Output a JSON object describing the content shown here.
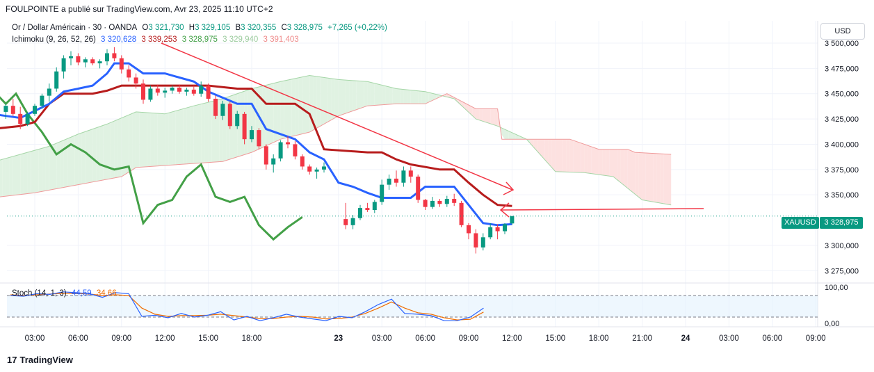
{
  "header": {
    "published": "FOULPOINTE a publié sur TradingView.com, Avr 23, 2025 11:10 UTC+2"
  },
  "legend_main": {
    "symbol": "Or / Dollar Américain · 30 · OANDA",
    "o_label": "O",
    "o_val": "3 321,730",
    "h_label": "H",
    "h_val": "3 329,105",
    "b_label": "B",
    "b_val": "3 320,355",
    "c_label": "C",
    "c_val": "3 328,975",
    "change": "+7,265 (+0,22%)"
  },
  "legend_ichimoku": {
    "name": "Ichimoku (9, 26, 52, 26)",
    "v1": "3 320,628",
    "v2": "3 339,253",
    "v3": "3 328,975",
    "v4": "3 329,940",
    "v5": "3 391,403"
  },
  "legend_stoch": {
    "name": "Stoch (14, 1, 3)",
    "k": "44,59",
    "d": "34,66"
  },
  "currency_button": "USD",
  "symbol_badge": "XAUUSD",
  "price_badge": "3 328,975",
  "brand": "TradingView",
  "colors": {
    "up": "#089981",
    "down": "#f23645",
    "tenkan": "#2962ff",
    "kijun": "#b71c1c",
    "chikou": "#43a047",
    "cloud_bull": "#e0f2e2",
    "cloud_bear": "#fde1e0",
    "stoch_k": "#2962ff",
    "stoch_d": "#ef6c00",
    "annotation": "#f23645"
  },
  "chart_data": {
    "type": "candlestick",
    "title": "Or / Dollar Américain · 30 · OANDA",
    "y_ticks": [
      3500,
      3475,
      3450,
      3425,
      3400,
      3375,
      3350,
      3300,
      3275
    ],
    "y_tick_labels": [
      "3 500,000",
      "3 475,000",
      "3 450,000",
      "3 425,000",
      "3 400,000",
      "3 375,000",
      "3 350,000",
      "3 300,000",
      "3 275,000"
    ],
    "ylim": [
      3268,
      3508
    ],
    "x_ticks": [
      "03:00",
      "06:00",
      "09:00",
      "12:00",
      "15:00",
      "18:00",
      "23",
      "03:00",
      "06:00",
      "09:00",
      "12:00",
      "15:00",
      "18:00",
      "21:00",
      "24",
      "03:00",
      "06:00",
      "09:00"
    ],
    "x_tick_hours": [
      3,
      6,
      9,
      12,
      15,
      18,
      24,
      27,
      30,
      33,
      36,
      39,
      42,
      45,
      48,
      51,
      54,
      57
    ],
    "last_price": 3328.975,
    "candles": [
      {
        "t": 1.0,
        "o": 3432,
        "h": 3440,
        "l": 3425,
        "c": 3438
      },
      {
        "t": 1.5,
        "o": 3438,
        "h": 3445,
        "l": 3428,
        "c": 3430
      },
      {
        "t": 2.0,
        "o": 3430,
        "h": 3437,
        "l": 3415,
        "c": 3420
      },
      {
        "t": 2.5,
        "o": 3420,
        "h": 3432,
        "l": 3418,
        "c": 3430
      },
      {
        "t": 3.0,
        "o": 3430,
        "h": 3440,
        "l": 3428,
        "c": 3438
      },
      {
        "t": 3.5,
        "o": 3438,
        "h": 3450,
        "l": 3435,
        "c": 3448
      },
      {
        "t": 4.0,
        "o": 3448,
        "h": 3460,
        "l": 3442,
        "c": 3455
      },
      {
        "t": 4.5,
        "o": 3455,
        "h": 3476,
        "l": 3452,
        "c": 3472
      },
      {
        "t": 5.0,
        "o": 3472,
        "h": 3488,
        "l": 3465,
        "c": 3485
      },
      {
        "t": 5.5,
        "o": 3485,
        "h": 3492,
        "l": 3478,
        "c": 3487
      },
      {
        "t": 6.0,
        "o": 3487,
        "h": 3490,
        "l": 3478,
        "c": 3481
      },
      {
        "t": 6.5,
        "o": 3481,
        "h": 3486,
        "l": 3476,
        "c": 3484
      },
      {
        "t": 7.0,
        "o": 3484,
        "h": 3486,
        "l": 3478,
        "c": 3480
      },
      {
        "t": 7.5,
        "o": 3480,
        "h": 3484,
        "l": 3475,
        "c": 3482
      },
      {
        "t": 8.0,
        "o": 3482,
        "h": 3494,
        "l": 3478,
        "c": 3490
      },
      {
        "t": 8.5,
        "o": 3490,
        "h": 3496,
        "l": 3482,
        "c": 3485
      },
      {
        "t": 9.0,
        "o": 3485,
        "h": 3488,
        "l": 3470,
        "c": 3474
      },
      {
        "t": 9.5,
        "o": 3474,
        "h": 3478,
        "l": 3462,
        "c": 3466
      },
      {
        "t": 10.0,
        "o": 3466,
        "h": 3470,
        "l": 3455,
        "c": 3460
      },
      {
        "t": 10.5,
        "o": 3460,
        "h": 3464,
        "l": 3440,
        "c": 3444
      },
      {
        "t": 11.0,
        "o": 3444,
        "h": 3458,
        "l": 3442,
        "c": 3455
      },
      {
        "t": 11.5,
        "o": 3455,
        "h": 3459,
        "l": 3448,
        "c": 3451
      },
      {
        "t": 12.0,
        "o": 3451,
        "h": 3456,
        "l": 3446,
        "c": 3453
      },
      {
        "t": 12.5,
        "o": 3453,
        "h": 3458,
        "l": 3450,
        "c": 3456
      },
      {
        "t": 13.0,
        "o": 3456,
        "h": 3459,
        "l": 3450,
        "c": 3452
      },
      {
        "t": 13.5,
        "o": 3452,
        "h": 3456,
        "l": 3448,
        "c": 3454
      },
      {
        "t": 14.0,
        "o": 3454,
        "h": 3458,
        "l": 3448,
        "c": 3450
      },
      {
        "t": 14.5,
        "o": 3450,
        "h": 3462,
        "l": 3447,
        "c": 3458
      },
      {
        "t": 15.0,
        "o": 3458,
        "h": 3460,
        "l": 3442,
        "c": 3445
      },
      {
        "t": 15.5,
        "o": 3445,
        "h": 3448,
        "l": 3425,
        "c": 3428
      },
      {
        "t": 16.0,
        "o": 3428,
        "h": 3443,
        "l": 3424,
        "c": 3440
      },
      {
        "t": 16.5,
        "o": 3440,
        "h": 3442,
        "l": 3415,
        "c": 3418
      },
      {
        "t": 17.0,
        "o": 3418,
        "h": 3433,
        "l": 3415,
        "c": 3430
      },
      {
        "t": 17.5,
        "o": 3430,
        "h": 3432,
        "l": 3400,
        "c": 3405
      },
      {
        "t": 18.0,
        "o": 3405,
        "h": 3418,
        "l": 3402,
        "c": 3414
      },
      {
        "t": 18.5,
        "o": 3414,
        "h": 3416,
        "l": 3395,
        "c": 3398
      },
      {
        "t": 19.0,
        "o": 3398,
        "h": 3400,
        "l": 3375,
        "c": 3380
      },
      {
        "t": 19.5,
        "o": 3380,
        "h": 3390,
        "l": 3372,
        "c": 3386
      },
      {
        "t": 20.0,
        "o": 3386,
        "h": 3404,
        "l": 3383,
        "c": 3402
      },
      {
        "t": 20.5,
        "o": 3402,
        "h": 3408,
        "l": 3396,
        "c": 3400
      },
      {
        "t": 21.0,
        "o": 3400,
        "h": 3403,
        "l": 3385,
        "c": 3388
      },
      {
        "t": 21.5,
        "o": 3388,
        "h": 3390,
        "l": 3375,
        "c": 3378
      },
      {
        "t": 22.0,
        "o": 3378,
        "h": 3380,
        "l": 3370,
        "c": 3373
      },
      {
        "t": 22.5,
        "o": 3373,
        "h": 3377,
        "l": 3366,
        "c": 3375
      },
      {
        "t": 23.0,
        "o": 3375,
        "h": 3382,
        "l": 3372,
        "c": 3378
      },
      {
        "t": 24.5,
        "o": 3326,
        "h": 3342,
        "l": 3316,
        "c": 3320
      },
      {
        "t": 25.0,
        "o": 3320,
        "h": 3330,
        "l": 3316,
        "c": 3327
      },
      {
        "t": 25.5,
        "o": 3327,
        "h": 3340,
        "l": 3325,
        "c": 3337
      },
      {
        "t": 26.0,
        "o": 3337,
        "h": 3342,
        "l": 3333,
        "c": 3335
      },
      {
        "t": 26.5,
        "o": 3335,
        "h": 3345,
        "l": 3332,
        "c": 3343
      },
      {
        "t": 27.0,
        "o": 3343,
        "h": 3365,
        "l": 3340,
        "c": 3360
      },
      {
        "t": 27.5,
        "o": 3360,
        "h": 3370,
        "l": 3355,
        "c": 3366
      },
      {
        "t": 28.0,
        "o": 3366,
        "h": 3374,
        "l": 3358,
        "c": 3362
      },
      {
        "t": 28.5,
        "o": 3362,
        "h": 3378,
        "l": 3358,
        "c": 3374
      },
      {
        "t": 29.0,
        "o": 3374,
        "h": 3378,
        "l": 3362,
        "c": 3368
      },
      {
        "t": 29.5,
        "o": 3368,
        "h": 3370,
        "l": 3342,
        "c": 3345
      },
      {
        "t": 30.0,
        "o": 3345,
        "h": 3346,
        "l": 3335,
        "c": 3338
      },
      {
        "t": 30.5,
        "o": 3338,
        "h": 3348,
        "l": 3336,
        "c": 3344
      },
      {
        "t": 31.0,
        "o": 3344,
        "h": 3346,
        "l": 3338,
        "c": 3341
      },
      {
        "t": 31.5,
        "o": 3341,
        "h": 3349,
        "l": 3338,
        "c": 3346
      },
      {
        "t": 32.0,
        "o": 3346,
        "h": 3351,
        "l": 3339,
        "c": 3342
      },
      {
        "t": 32.5,
        "o": 3342,
        "h": 3344,
        "l": 3318,
        "c": 3320
      },
      {
        "t": 33.0,
        "o": 3320,
        "h": 3322,
        "l": 3306,
        "c": 3312
      },
      {
        "t": 33.5,
        "o": 3312,
        "h": 3316,
        "l": 3292,
        "c": 3298
      },
      {
        "t": 34.0,
        "o": 3298,
        "h": 3312,
        "l": 3295,
        "c": 3308
      },
      {
        "t": 34.5,
        "o": 3308,
        "h": 3322,
        "l": 3306,
        "c": 3318
      },
      {
        "t": 35.0,
        "o": 3318,
        "h": 3321,
        "l": 3306,
        "c": 3314
      },
      {
        "t": 35.5,
        "o": 3314,
        "h": 3322,
        "l": 3311,
        "c": 3321
      },
      {
        "t": 36.0,
        "o": 3321.73,
        "h": 3329.105,
        "l": 3320.355,
        "c": 3328.975
      }
    ],
    "tenkan": [
      [
        0,
        3430
      ],
      [
        1,
        3428
      ],
      [
        2,
        3426
      ],
      [
        3,
        3433
      ],
      [
        4,
        3440
      ],
      [
        5,
        3452
      ],
      [
        6,
        3455
      ],
      [
        7,
        3458
      ],
      [
        8,
        3470
      ],
      [
        8.5,
        3480
      ],
      [
        9.5,
        3480
      ],
      [
        10.5,
        3470
      ],
      [
        12,
        3470
      ],
      [
        13,
        3466
      ],
      [
        14,
        3462
      ],
      [
        15,
        3452
      ],
      [
        16,
        3446
      ],
      [
        17,
        3440
      ],
      [
        18,
        3440
      ],
      [
        19,
        3415
      ],
      [
        20,
        3410
      ],
      [
        21,
        3405
      ],
      [
        22,
        3392
      ],
      [
        23,
        3385
      ],
      [
        24,
        3362
      ],
      [
        25,
        3358
      ],
      [
        26,
        3352
      ],
      [
        27,
        3347
      ],
      [
        28,
        3347
      ],
      [
        29,
        3347
      ],
      [
        30,
        3358
      ],
      [
        31,
        3358
      ],
      [
        32,
        3358
      ],
      [
        33,
        3340
      ],
      [
        34,
        3322
      ],
      [
        35,
        3320
      ],
      [
        36,
        3321
      ]
    ],
    "kijun": [
      [
        0,
        3415
      ],
      [
        2,
        3418
      ],
      [
        3,
        3422
      ],
      [
        4,
        3440
      ],
      [
        5,
        3450
      ],
      [
        7,
        3450
      ],
      [
        8,
        3453
      ],
      [
        9,
        3458
      ],
      [
        12,
        3458
      ],
      [
        15,
        3458
      ],
      [
        17,
        3455
      ],
      [
        18,
        3455
      ],
      [
        19,
        3440
      ],
      [
        20,
        3440
      ],
      [
        21,
        3440
      ],
      [
        22,
        3430
      ],
      [
        23,
        3395
      ],
      [
        26,
        3392
      ],
      [
        27,
        3392
      ],
      [
        28,
        3385
      ],
      [
        29,
        3380
      ],
      [
        31,
        3375
      ],
      [
        32,
        3375
      ],
      [
        33,
        3362
      ],
      [
        34,
        3350
      ],
      [
        35,
        3340
      ],
      [
        36,
        3339
      ]
    ],
    "chikou": [
      [
        0,
        3455
      ],
      [
        1,
        3440
      ],
      [
        1.7,
        3450
      ],
      [
        2.5,
        3430
      ],
      [
        3.5,
        3412
      ],
      [
        4.5,
        3390
      ],
      [
        5.5,
        3400
      ],
      [
        6.5,
        3392
      ],
      [
        7.5,
        3380
      ],
      [
        8.5,
        3375
      ],
      [
        9.5,
        3378
      ],
      [
        10.5,
        3322
      ],
      [
        11.5,
        3340
      ],
      [
        12.5,
        3345
      ],
      [
        13.5,
        3368
      ],
      [
        14.5,
        3380
      ],
      [
        15.5,
        3348
      ],
      [
        16.5,
        3343
      ],
      [
        17.5,
        3348
      ],
      [
        18.5,
        3320
      ],
      [
        19.5,
        3306
      ],
      [
        20.5,
        3318
      ],
      [
        21.5,
        3328
      ]
    ],
    "senkou_a": [
      [
        0,
        3382
      ],
      [
        2,
        3390
      ],
      [
        4,
        3398
      ],
      [
        6,
        3410
      ],
      [
        8,
        3420
      ],
      [
        10,
        3432
      ],
      [
        12,
        3430
      ],
      [
        14,
        3438
      ],
      [
        16,
        3445
      ],
      [
        18,
        3455
      ],
      [
        20,
        3462
      ],
      [
        22,
        3468
      ],
      [
        24,
        3464
      ],
      [
        26,
        3462
      ],
      [
        28,
        3455
      ],
      [
        30,
        3452
      ],
      [
        32,
        3445
      ],
      [
        33.5,
        3425
      ],
      [
        35,
        3418
      ],
      [
        37,
        3405
      ],
      [
        39,
        3373
      ],
      [
        41,
        3372
      ],
      [
        43,
        3368
      ],
      [
        45,
        3345
      ],
      [
        47,
        3340
      ]
    ],
    "senkou_b": [
      [
        0,
        3347
      ],
      [
        3,
        3352
      ],
      [
        6,
        3360
      ],
      [
        9,
        3368
      ],
      [
        10,
        3377
      ],
      [
        13,
        3380
      ],
      [
        16,
        3383
      ],
      [
        18,
        3392
      ],
      [
        20,
        3405
      ],
      [
        22,
        3412
      ],
      [
        24,
        3428
      ],
      [
        26,
        3438
      ],
      [
        28,
        3440
      ],
      [
        30,
        3440
      ],
      [
        31.5,
        3450
      ],
      [
        33.5,
        3435
      ],
      [
        35,
        3435
      ],
      [
        35.3,
        3405
      ],
      [
        40,
        3405
      ],
      [
        42,
        3395
      ],
      [
        44,
        3395
      ],
      [
        44.5,
        3392
      ],
      [
        47,
        3390
      ]
    ],
    "stoch_levels": {
      "upper": 80,
      "lower": 20,
      "top_label": "100,00",
      "bottom_label": "0,00"
    },
    "stoch_k": [
      [
        0,
        80
      ],
      [
        1,
        78
      ],
      [
        2,
        85
      ],
      [
        3,
        83
      ],
      [
        4,
        90
      ],
      [
        5,
        88
      ],
      [
        6,
        85
      ],
      [
        7,
        75
      ],
      [
        8,
        88
      ],
      [
        9,
        85
      ],
      [
        10,
        22
      ],
      [
        11,
        25
      ],
      [
        12,
        18
      ],
      [
        13,
        30
      ],
      [
        14,
        20
      ],
      [
        15,
        25
      ],
      [
        16,
        35
      ],
      [
        17,
        12
      ],
      [
        18,
        22
      ],
      [
        19,
        10
      ],
      [
        20,
        18
      ],
      [
        21,
        28
      ],
      [
        22,
        20
      ],
      [
        23,
        15
      ],
      [
        24,
        10
      ],
      [
        25,
        22
      ],
      [
        26,
        18
      ],
      [
        27,
        35
      ],
      [
        28,
        55
      ],
      [
        29,
        70
      ],
      [
        30,
        30
      ],
      [
        31,
        28
      ],
      [
        32,
        24
      ],
      [
        33,
        10
      ],
      [
        34,
        10
      ],
      [
        35,
        20
      ],
      [
        36,
        45
      ]
    ],
    "stoch_d": [
      [
        0,
        82
      ],
      [
        1,
        80
      ],
      [
        2,
        82
      ],
      [
        3,
        84
      ],
      [
        4,
        86
      ],
      [
        5,
        86
      ],
      [
        6,
        84
      ],
      [
        7,
        80
      ],
      [
        8,
        82
      ],
      [
        9,
        80
      ],
      [
        10,
        45
      ],
      [
        11,
        28
      ],
      [
        12,
        22
      ],
      [
        13,
        24
      ],
      [
        14,
        24
      ],
      [
        15,
        25
      ],
      [
        16,
        28
      ],
      [
        17,
        24
      ],
      [
        18,
        20
      ],
      [
        19,
        16
      ],
      [
        20,
        16
      ],
      [
        21,
        20
      ],
      [
        22,
        22
      ],
      [
        23,
        20
      ],
      [
        24,
        15
      ],
      [
        25,
        16
      ],
      [
        26,
        20
      ],
      [
        27,
        30
      ],
      [
        28,
        45
      ],
      [
        29,
        62
      ],
      [
        30,
        45
      ],
      [
        31,
        32
      ],
      [
        32,
        28
      ],
      [
        33,
        18
      ],
      [
        34,
        12
      ],
      [
        35,
        14
      ],
      [
        36,
        34
      ]
    ]
  }
}
